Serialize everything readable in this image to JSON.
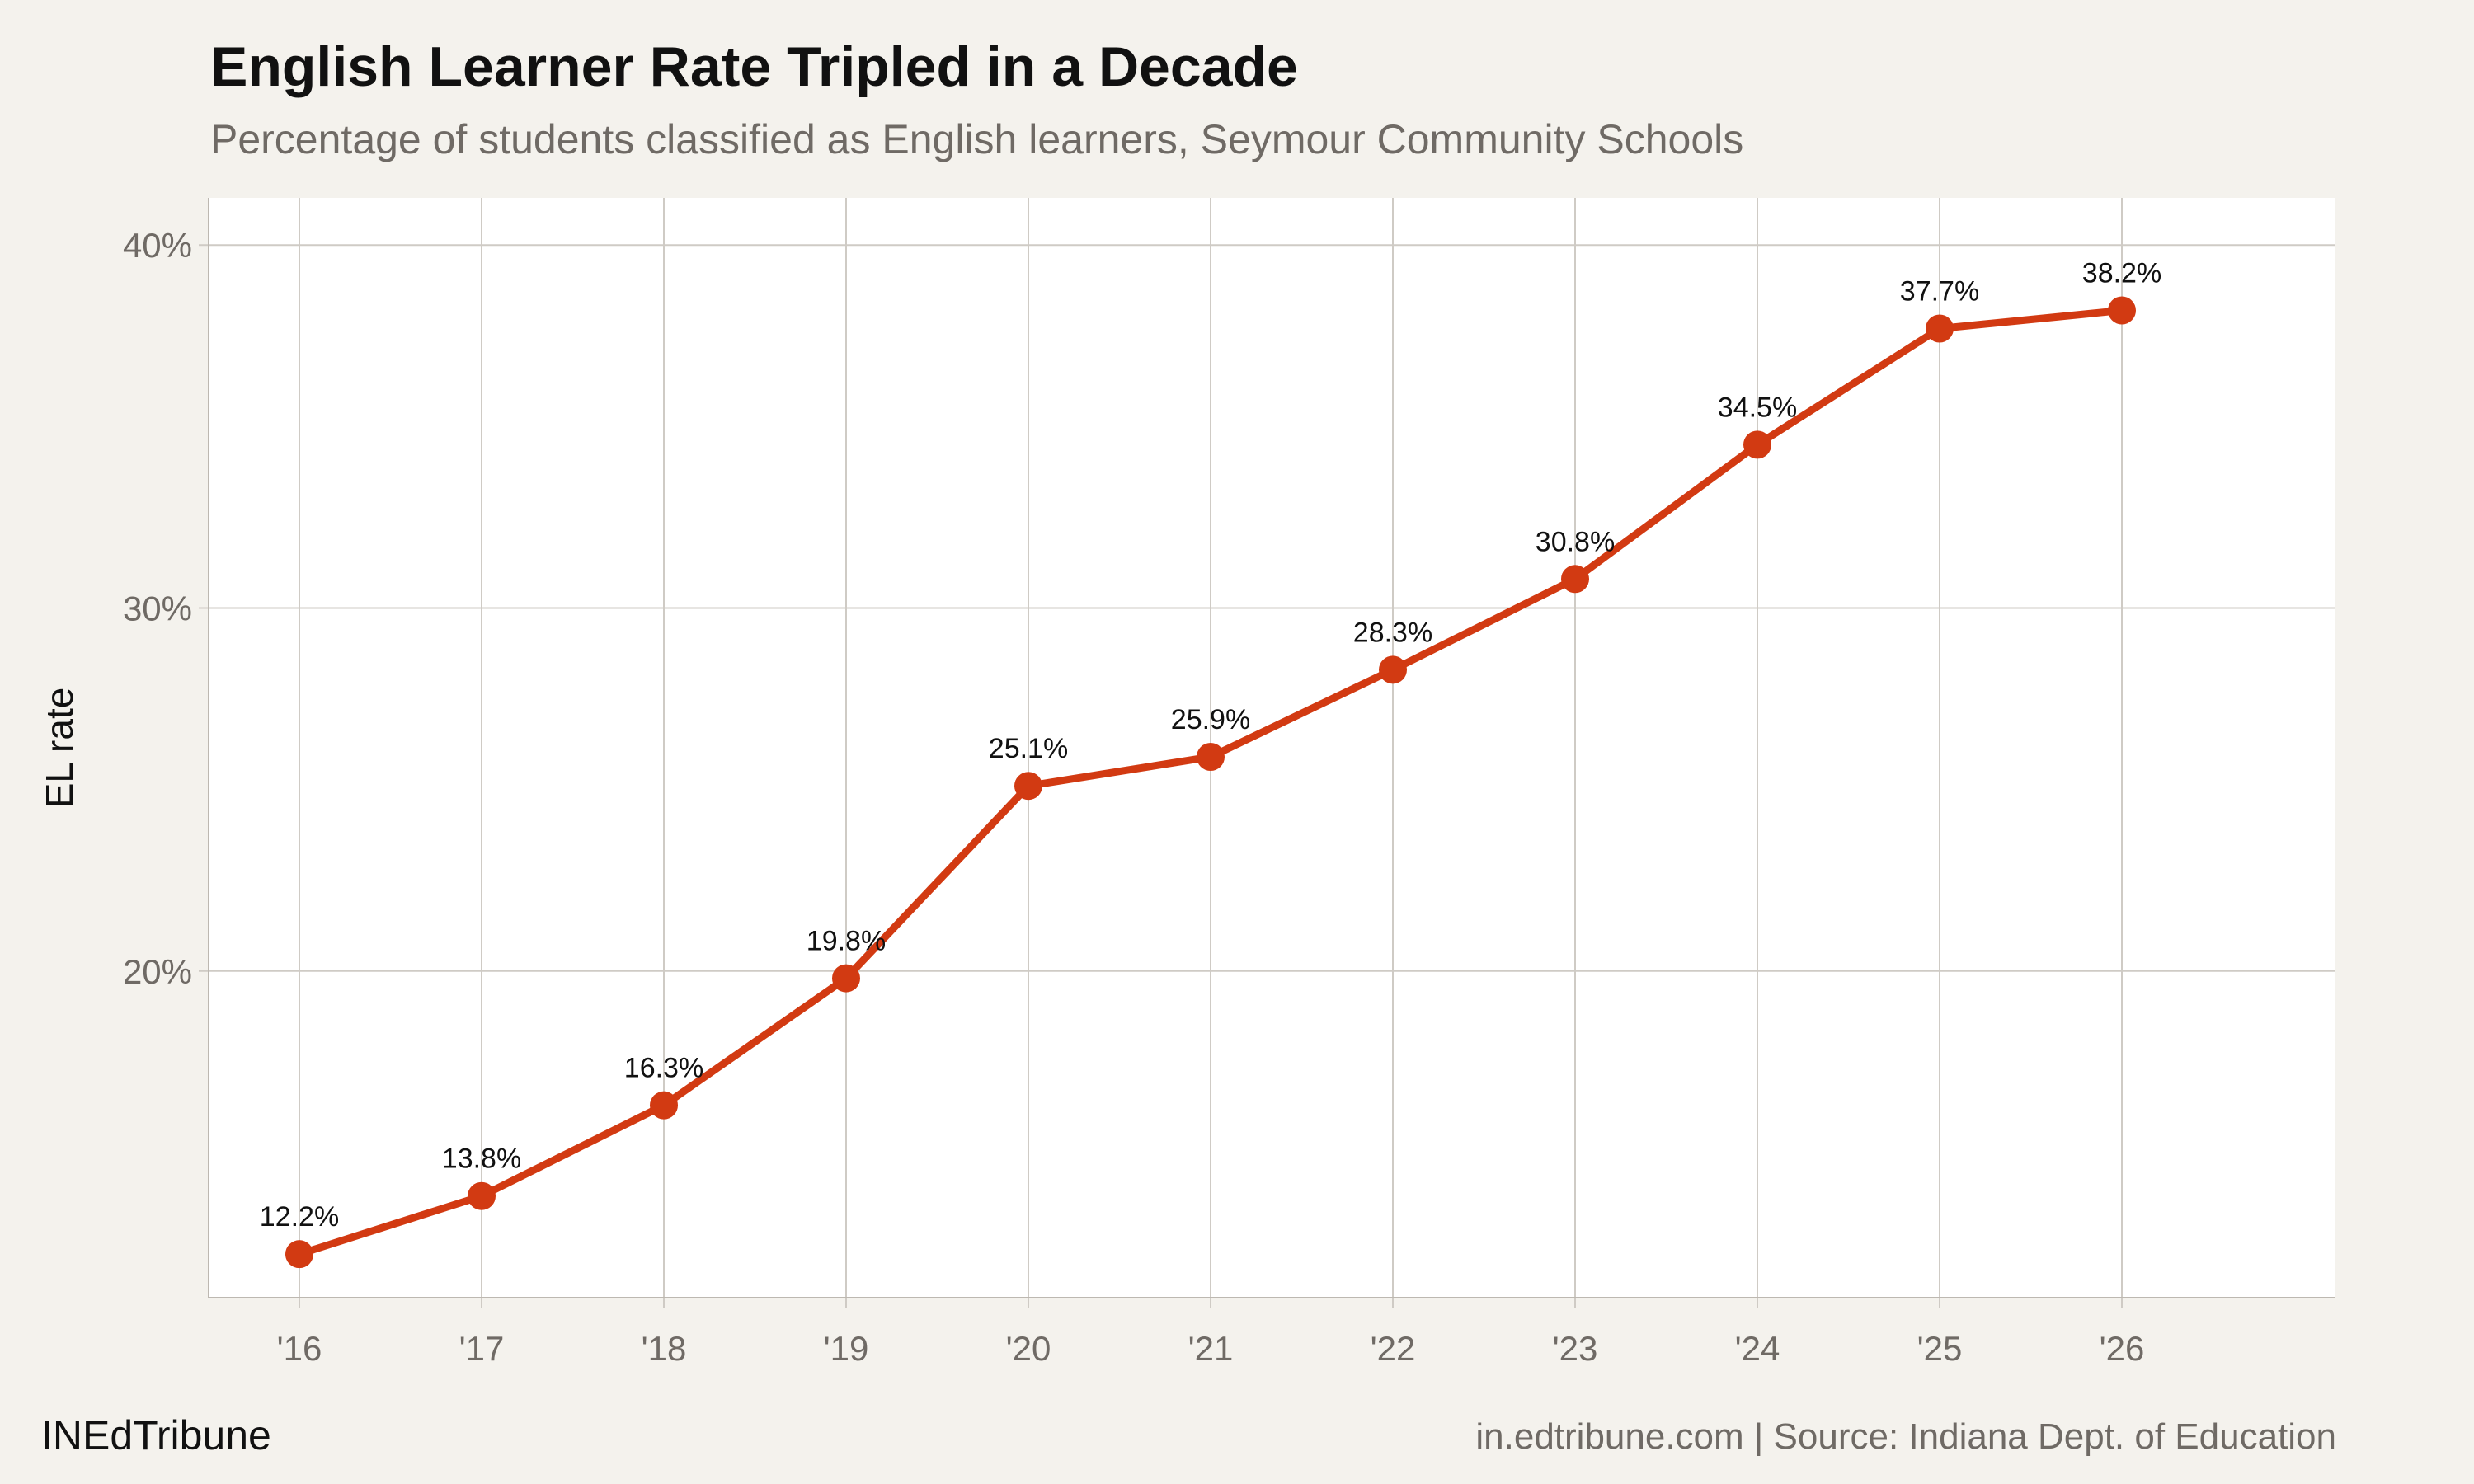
{
  "header": {
    "title": "English Learner Rate Tripled in a Decade",
    "subtitle": "Percentage of students classified as English learners, Seymour Community Schools"
  },
  "footer": {
    "brand": "INEdTribune",
    "source": "in.edtribune.com | Source: Indiana Dept. of Education"
  },
  "colors": {
    "background": "#f4f2ed",
    "plot_background": "#ffffff",
    "line": "#d23a12",
    "grid": "#cfcbc5",
    "tick_text": "#6f6a65"
  },
  "chart_data": {
    "type": "line",
    "title": "English Learner Rate Tripled in a Decade",
    "subtitle": "Percentage of students classified as English learners, Seymour Community Schools",
    "xlabel": "",
    "ylabel": "EL rate",
    "categories": [
      "'16",
      "'17",
      "'18",
      "'19",
      "'20",
      "'21",
      "'22",
      "'23",
      "'24",
      "'25",
      "'26"
    ],
    "series": [
      {
        "values": [
          12.2,
          13.8,
          16.3,
          19.8,
          25.1,
          25.9,
          28.3,
          30.8,
          34.5,
          37.7,
          38.2
        ],
        "labels": [
          "12.2%",
          "13.8%",
          "16.3%",
          "19.8%",
          "25.1%",
          "25.9%",
          "28.3%",
          "30.8%",
          "34.5%",
          "37.7%",
          "38.2%"
        ]
      }
    ],
    "yticks": [
      20,
      30,
      40
    ],
    "ytick_labels": [
      "20%",
      "30%",
      "40%"
    ],
    "ylim": [
      11,
      41.3
    ],
    "grid": true,
    "legend": "none"
  }
}
